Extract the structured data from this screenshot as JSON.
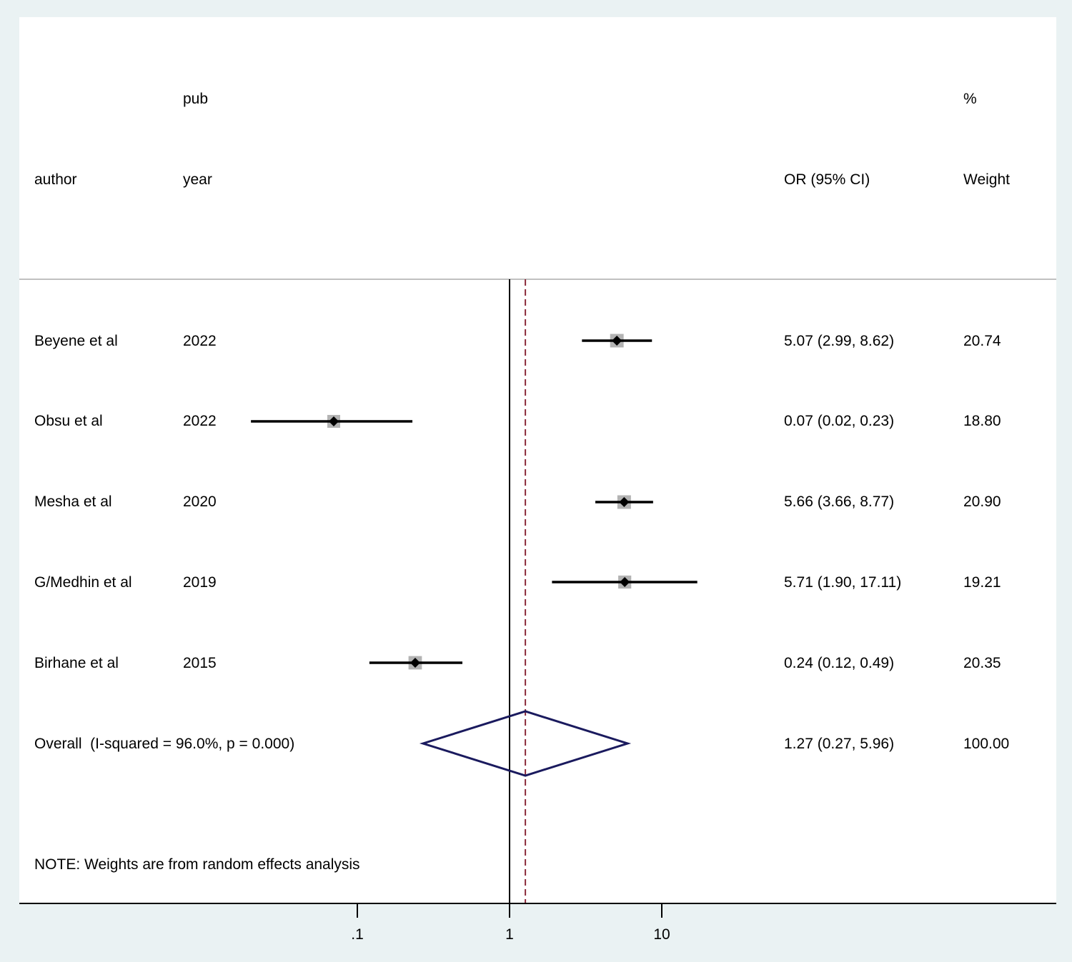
{
  "chart_data": {
    "type": "forest",
    "scale": "log",
    "x_ticks": [
      {
        "value": 0.1,
        "label": ".1"
      },
      {
        "value": 1,
        "label": "1"
      },
      {
        "value": 10,
        "label": "10"
      }
    ],
    "null_line": 1,
    "columns": {
      "author": "author",
      "year_top": "pub",
      "year": "year",
      "estimate": "OR (95% CI)",
      "weight_top": "%",
      "weight": "Weight"
    },
    "studies": [
      {
        "author": "Beyene et al",
        "year": "2022",
        "or": 5.07,
        "lo": 2.99,
        "hi": 8.62,
        "ci_text": "5.07 (2.99, 8.62)",
        "weight": 20.74,
        "weight_text": "20.74"
      },
      {
        "author": "Obsu et al",
        "year": "2022",
        "or": 0.07,
        "lo": 0.02,
        "hi": 0.23,
        "ci_text": "0.07 (0.02, 0.23)",
        "weight": 18.8,
        "weight_text": "18.80"
      },
      {
        "author": "Mesha et al",
        "year": "2020",
        "or": 5.66,
        "lo": 3.66,
        "hi": 8.77,
        "ci_text": "5.66 (3.66, 8.77)",
        "weight": 20.9,
        "weight_text": "20.90"
      },
      {
        "author": "G/Medhin et al",
        "year": "2019",
        "or": 5.71,
        "lo": 1.9,
        "hi": 17.11,
        "ci_text": "5.71 (1.90, 17.11)",
        "weight": 19.21,
        "weight_text": "19.21"
      },
      {
        "author": "Birhane et al",
        "year": "2015",
        "or": 0.24,
        "lo": 0.12,
        "hi": 0.49,
        "ci_text": "0.24 (0.12, 0.49)",
        "weight": 20.35,
        "weight_text": "20.35"
      }
    ],
    "overall": {
      "label": "Overall  (I-squared = 96.0%, p = 0.000)",
      "or": 1.27,
      "lo": 0.27,
      "hi": 5.96,
      "ci_text": "1.27 (0.27, 5.96)",
      "weight_text": "100.00"
    },
    "note": "NOTE: Weights are from random effects analysis",
    "colors": {
      "background": "#eaf2f3",
      "panel": "#ffffff",
      "ci_line": "#000000",
      "box": "#b3b3b3",
      "point": "#000000",
      "overall_diamond": "#1a1a5e",
      "overall_line": "#8b2a3a",
      "null_line": "#000000",
      "header_rule": "#c0c0c0"
    }
  }
}
